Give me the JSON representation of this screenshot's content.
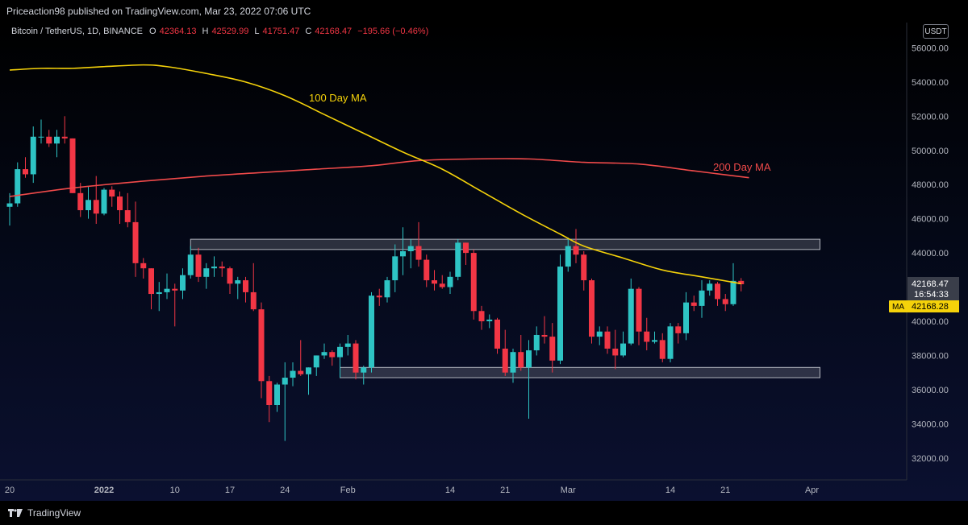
{
  "header": {
    "publish_line": "Priceaction98 published on TradingView.com, Mar 23, 2022 07:06 UTC"
  },
  "legend": {
    "symbol": "Bitcoin / TetherUS, 1D, BINANCE",
    "o_label": "O",
    "o_value": "42364.13",
    "h_label": "H",
    "h_value": "42529.99",
    "l_label": "L",
    "l_value": "41751.47",
    "c_label": "C",
    "c_value": "42168.47",
    "change": "−195.66 (−0.46%)"
  },
  "currency_badge": "USDT",
  "price_tag": {
    "price": "42168.47",
    "countdown": "16:54:33",
    "ma_label": "MA",
    "ma_value": "42168.28"
  },
  "footer": {
    "brand": "TradingView"
  },
  "colors": {
    "up": "#26a69a",
    "up_body": "#2ec4c4",
    "down": "#f23645",
    "ma100": "#f5d20a",
    "ma200": "#f04a4a",
    "zone_fill": "#787b86",
    "zone_stroke": "#b2b5be"
  },
  "chart_data": {
    "type": "candlestick",
    "yaxis": {
      "ticks": [
        32000,
        34000,
        36000,
        38000,
        40000,
        42000,
        44000,
        46000,
        48000,
        50000,
        52000,
        54000,
        56000
      ],
      "tick_labels": [
        "32000.00",
        "34000.00",
        "36000.00",
        "38000.00",
        "40000.00",
        "42000.00",
        "44000.00",
        "46000.00",
        "48000.00",
        "50000.00",
        "52000.00",
        "54000.00",
        "56000.00"
      ]
    },
    "xaxis": {
      "labels": [
        {
          "label": "20",
          "date": "2021-12-20"
        },
        {
          "label": "2022",
          "date": "2022-01-01",
          "bold": true
        },
        {
          "label": "10",
          "date": "2022-01-10"
        },
        {
          "label": "17",
          "date": "2022-01-17"
        },
        {
          "label": "24",
          "date": "2022-01-24"
        },
        {
          "label": "Feb",
          "date": "2022-02-01"
        },
        {
          "label": "14",
          "date": "2022-02-14"
        },
        {
          "label": "21",
          "date": "2022-02-21"
        },
        {
          "label": "Mar",
          "date": "2022-03-01"
        },
        {
          "label": "14",
          "date": "2022-03-14"
        },
        {
          "label": "21",
          "date": "2022-03-21"
        },
        {
          "label": "Apr",
          "date": "2022-04-01"
        }
      ]
    },
    "candles": [
      {
        "date": "2021-12-20",
        "o": 46700,
        "h": 47500,
        "l": 45600,
        "c": 46900
      },
      {
        "date": "2021-12-21",
        "o": 46900,
        "h": 49300,
        "l": 46700,
        "c": 48900
      },
      {
        "date": "2021-12-22",
        "o": 48900,
        "h": 49600,
        "l": 48400,
        "c": 48600
      },
      {
        "date": "2021-12-23",
        "o": 48600,
        "h": 51400,
        "l": 48100,
        "c": 50800
      },
      {
        "date": "2021-12-24",
        "o": 50800,
        "h": 51800,
        "l": 50400,
        "c": 50800
      },
      {
        "date": "2021-12-25",
        "o": 50800,
        "h": 51200,
        "l": 50200,
        "c": 50400
      },
      {
        "date": "2021-12-26",
        "o": 50400,
        "h": 51200,
        "l": 49600,
        "c": 50800
      },
      {
        "date": "2021-12-27",
        "o": 50800,
        "h": 52000,
        "l": 50400,
        "c": 50700
      },
      {
        "date": "2021-12-28",
        "o": 50700,
        "h": 50700,
        "l": 47500,
        "c": 47500
      },
      {
        "date": "2021-12-29",
        "o": 47500,
        "h": 48100,
        "l": 46100,
        "c": 46500
      },
      {
        "date": "2021-12-30",
        "o": 46500,
        "h": 47900,
        "l": 46000,
        "c": 47100
      },
      {
        "date": "2021-12-31",
        "o": 47100,
        "h": 48500,
        "l": 45700,
        "c": 46300
      },
      {
        "date": "2022-01-01",
        "o": 46300,
        "h": 47800,
        "l": 46200,
        "c": 47700
      },
      {
        "date": "2022-01-02",
        "o": 47700,
        "h": 47900,
        "l": 46700,
        "c": 47300
      },
      {
        "date": "2022-01-03",
        "o": 47300,
        "h": 47600,
        "l": 45700,
        "c": 46500
      },
      {
        "date": "2022-01-04",
        "o": 46500,
        "h": 47500,
        "l": 45500,
        "c": 45800
      },
      {
        "date": "2022-01-05",
        "o": 45800,
        "h": 47000,
        "l": 42600,
        "c": 43400
      },
      {
        "date": "2022-01-06",
        "o": 43400,
        "h": 43700,
        "l": 42500,
        "c": 43100
      },
      {
        "date": "2022-01-07",
        "o": 43100,
        "h": 43100,
        "l": 40700,
        "c": 41600
      },
      {
        "date": "2022-01-08",
        "o": 41600,
        "h": 42300,
        "l": 40600,
        "c": 41700
      },
      {
        "date": "2022-01-09",
        "o": 41700,
        "h": 42800,
        "l": 41300,
        "c": 41900
      },
      {
        "date": "2022-01-10",
        "o": 41900,
        "h": 42200,
        "l": 39700,
        "c": 41800
      },
      {
        "date": "2022-01-11",
        "o": 41800,
        "h": 43100,
        "l": 41300,
        "c": 42700
      },
      {
        "date": "2022-01-12",
        "o": 42700,
        "h": 44400,
        "l": 42500,
        "c": 43900
      },
      {
        "date": "2022-01-13",
        "o": 43900,
        "h": 44300,
        "l": 42300,
        "c": 42600
      },
      {
        "date": "2022-01-14",
        "o": 42600,
        "h": 43400,
        "l": 41900,
        "c": 43100
      },
      {
        "date": "2022-01-15",
        "o": 43100,
        "h": 43800,
        "l": 42600,
        "c": 43200
      },
      {
        "date": "2022-01-16",
        "o": 43200,
        "h": 43500,
        "l": 42600,
        "c": 43100
      },
      {
        "date": "2022-01-17",
        "o": 43100,
        "h": 43200,
        "l": 41600,
        "c": 42200
      },
      {
        "date": "2022-01-18",
        "o": 42200,
        "h": 42600,
        "l": 41300,
        "c": 42400
      },
      {
        "date": "2022-01-19",
        "o": 42400,
        "h": 42600,
        "l": 41100,
        "c": 41700
      },
      {
        "date": "2022-01-20",
        "o": 41700,
        "h": 43400,
        "l": 40600,
        "c": 40700
      },
      {
        "date": "2022-01-21",
        "o": 40700,
        "h": 41100,
        "l": 35500,
        "c": 36500
      },
      {
        "date": "2022-01-22",
        "o": 36500,
        "h": 36800,
        "l": 34100,
        "c": 35100
      },
      {
        "date": "2022-01-23",
        "o": 35100,
        "h": 36400,
        "l": 34700,
        "c": 36300
      },
      {
        "date": "2022-01-24",
        "o": 36300,
        "h": 37600,
        "l": 33000,
        "c": 36700
      },
      {
        "date": "2022-01-25",
        "o": 36700,
        "h": 37600,
        "l": 36200,
        "c": 37100
      },
      {
        "date": "2022-01-26",
        "o": 37100,
        "h": 38900,
        "l": 36800,
        "c": 36900
      },
      {
        "date": "2022-01-27",
        "o": 36900,
        "h": 37300,
        "l": 35700,
        "c": 37300
      },
      {
        "date": "2022-01-28",
        "o": 37300,
        "h": 38000,
        "l": 36800,
        "c": 38000
      },
      {
        "date": "2022-01-29",
        "o": 38000,
        "h": 38700,
        "l": 37800,
        "c": 38200
      },
      {
        "date": "2022-01-30",
        "o": 38200,
        "h": 38300,
        "l": 37400,
        "c": 37900
      },
      {
        "date": "2022-01-31",
        "o": 37900,
        "h": 38700,
        "l": 36700,
        "c": 38500
      },
      {
        "date": "2022-02-01",
        "o": 38500,
        "h": 39200,
        "l": 38000,
        "c": 38700
      },
      {
        "date": "2022-02-02",
        "o": 38700,
        "h": 38900,
        "l": 36600,
        "c": 37000
      },
      {
        "date": "2022-02-03",
        "o": 37000,
        "h": 37400,
        "l": 36300,
        "c": 37300
      },
      {
        "date": "2022-02-04",
        "o": 37300,
        "h": 41700,
        "l": 37000,
        "c": 41500
      },
      {
        "date": "2022-02-05",
        "o": 41500,
        "h": 41900,
        "l": 40900,
        "c": 41400
      },
      {
        "date": "2022-02-06",
        "o": 41400,
        "h": 42600,
        "l": 41100,
        "c": 42400
      },
      {
        "date": "2022-02-07",
        "o": 42400,
        "h": 44500,
        "l": 41700,
        "c": 43800
      },
      {
        "date": "2022-02-08",
        "o": 43800,
        "h": 45500,
        "l": 42700,
        "c": 44100
      },
      {
        "date": "2022-02-09",
        "o": 44100,
        "h": 44800,
        "l": 43100,
        "c": 44400
      },
      {
        "date": "2022-02-10",
        "o": 44400,
        "h": 45800,
        "l": 43200,
        "c": 43600
      },
      {
        "date": "2022-02-11",
        "o": 43600,
        "h": 43900,
        "l": 42000,
        "c": 42400
      },
      {
        "date": "2022-02-12",
        "o": 42400,
        "h": 43000,
        "l": 41800,
        "c": 42200
      },
      {
        "date": "2022-02-13",
        "o": 42200,
        "h": 42700,
        "l": 41900,
        "c": 42000
      },
      {
        "date": "2022-02-14",
        "o": 42000,
        "h": 42900,
        "l": 41600,
        "c": 42600
      },
      {
        "date": "2022-02-15",
        "o": 42600,
        "h": 44800,
        "l": 42400,
        "c": 44600
      },
      {
        "date": "2022-02-16",
        "o": 44600,
        "h": 44600,
        "l": 43300,
        "c": 44000
      },
      {
        "date": "2022-02-17",
        "o": 44000,
        "h": 44200,
        "l": 40100,
        "c": 40600
      },
      {
        "date": "2022-02-18",
        "o": 40600,
        "h": 40900,
        "l": 39500,
        "c": 40000
      },
      {
        "date": "2022-02-19",
        "o": 40000,
        "h": 40400,
        "l": 39600,
        "c": 40100
      },
      {
        "date": "2022-02-20",
        "o": 40100,
        "h": 40200,
        "l": 38100,
        "c": 38400
      },
      {
        "date": "2022-02-21",
        "o": 38400,
        "h": 39500,
        "l": 36800,
        "c": 37000
      },
      {
        "date": "2022-02-22",
        "o": 37000,
        "h": 38400,
        "l": 36400,
        "c": 38200
      },
      {
        "date": "2022-02-23",
        "o": 38200,
        "h": 39200,
        "l": 37100,
        "c": 37300
      },
      {
        "date": "2022-02-24",
        "o": 37300,
        "h": 38900,
        "l": 34300,
        "c": 38300
      },
      {
        "date": "2022-02-25",
        "o": 38300,
        "h": 39700,
        "l": 38000,
        "c": 39200
      },
      {
        "date": "2022-02-26",
        "o": 39200,
        "h": 40300,
        "l": 38700,
        "c": 39100
      },
      {
        "date": "2022-02-27",
        "o": 39100,
        "h": 39900,
        "l": 37000,
        "c": 37700
      },
      {
        "date": "2022-02-28",
        "o": 37700,
        "h": 43900,
        "l": 37500,
        "c": 43200
      },
      {
        "date": "2022-03-01",
        "o": 43200,
        "h": 44900,
        "l": 42900,
        "c": 44400
      },
      {
        "date": "2022-03-02",
        "o": 44400,
        "h": 45400,
        "l": 43400,
        "c": 43900
      },
      {
        "date": "2022-03-03",
        "o": 43900,
        "h": 44100,
        "l": 41800,
        "c": 42400
      },
      {
        "date": "2022-03-04",
        "o": 42400,
        "h": 42500,
        "l": 38700,
        "c": 39100
      },
      {
        "date": "2022-03-05",
        "o": 39100,
        "h": 39700,
        "l": 38600,
        "c": 39400
      },
      {
        "date": "2022-03-06",
        "o": 39400,
        "h": 39700,
        "l": 38100,
        "c": 38400
      },
      {
        "date": "2022-03-07",
        "o": 38400,
        "h": 39500,
        "l": 37200,
        "c": 38000
      },
      {
        "date": "2022-03-08",
        "o": 38000,
        "h": 39400,
        "l": 37900,
        "c": 38700
      },
      {
        "date": "2022-03-09",
        "o": 38700,
        "h": 42500,
        "l": 38600,
        "c": 41900
      },
      {
        "date": "2022-03-10",
        "o": 41900,
        "h": 42000,
        "l": 38600,
        "c": 39400
      },
      {
        "date": "2022-03-11",
        "o": 39400,
        "h": 40200,
        "l": 38300,
        "c": 38800
      },
      {
        "date": "2022-03-12",
        "o": 38800,
        "h": 39400,
        "l": 38700,
        "c": 38900
      },
      {
        "date": "2022-03-13",
        "o": 38900,
        "h": 39300,
        "l": 37600,
        "c": 37800
      },
      {
        "date": "2022-03-14",
        "o": 37800,
        "h": 39900,
        "l": 37600,
        "c": 39700
      },
      {
        "date": "2022-03-15",
        "o": 39700,
        "h": 39900,
        "l": 38700,
        "c": 39300
      },
      {
        "date": "2022-03-16",
        "o": 39300,
        "h": 41700,
        "l": 38900,
        "c": 41100
      },
      {
        "date": "2022-03-17",
        "o": 41100,
        "h": 41500,
        "l": 40600,
        "c": 40900
      },
      {
        "date": "2022-03-18",
        "o": 40900,
        "h": 42400,
        "l": 40200,
        "c": 41800
      },
      {
        "date": "2022-03-19",
        "o": 41800,
        "h": 42400,
        "l": 41500,
        "c": 42200
      },
      {
        "date": "2022-03-20",
        "o": 42200,
        "h": 42300,
        "l": 40900,
        "c": 41300
      },
      {
        "date": "2022-03-21",
        "o": 41300,
        "h": 41600,
        "l": 40600,
        "c": 41000
      },
      {
        "date": "2022-03-22",
        "o": 41000,
        "h": 43400,
        "l": 40900,
        "c": 42364
      },
      {
        "date": "2022-03-23",
        "o": 42364,
        "h": 42530,
        "l": 41751,
        "c": 42168
      }
    ],
    "ma100": {
      "name": "100 Day MA",
      "points": [
        {
          "date": "2021-12-20",
          "v": 54700
        },
        {
          "date": "2021-12-24",
          "v": 54800
        },
        {
          "date": "2021-12-28",
          "v": 54800
        },
        {
          "date": "2022-01-01",
          "v": 54900
        },
        {
          "date": "2022-01-06",
          "v": 55000
        },
        {
          "date": "2022-01-09",
          "v": 54900
        },
        {
          "date": "2022-01-14",
          "v": 54500
        },
        {
          "date": "2022-01-19",
          "v": 54000
        },
        {
          "date": "2022-01-24",
          "v": 53200
        },
        {
          "date": "2022-01-29",
          "v": 52100
        },
        {
          "date": "2022-02-03",
          "v": 51000
        },
        {
          "date": "2022-02-08",
          "v": 49900
        },
        {
          "date": "2022-02-13",
          "v": 48900
        },
        {
          "date": "2022-02-18",
          "v": 47600
        },
        {
          "date": "2022-02-23",
          "v": 46300
        },
        {
          "date": "2022-02-28",
          "v": 45100
        },
        {
          "date": "2022-03-03",
          "v": 44400
        },
        {
          "date": "2022-03-08",
          "v": 43700
        },
        {
          "date": "2022-03-13",
          "v": 43000
        },
        {
          "date": "2022-03-18",
          "v": 42600
        },
        {
          "date": "2022-03-23",
          "v": 42200
        }
      ]
    },
    "ma200": {
      "name": "200 Day MA",
      "points": [
        {
          "date": "2021-12-20",
          "v": 47300
        },
        {
          "date": "2021-12-28",
          "v": 47800
        },
        {
          "date": "2022-01-06",
          "v": 48200
        },
        {
          "date": "2022-01-14",
          "v": 48500
        },
        {
          "date": "2022-01-21",
          "v": 48700
        },
        {
          "date": "2022-01-28",
          "v": 48900
        },
        {
          "date": "2022-02-04",
          "v": 49100
        },
        {
          "date": "2022-02-10",
          "v": 49400
        },
        {
          "date": "2022-02-17",
          "v": 49500
        },
        {
          "date": "2022-02-24",
          "v": 49500
        },
        {
          "date": "2022-03-03",
          "v": 49300
        },
        {
          "date": "2022-03-10",
          "v": 49200
        },
        {
          "date": "2022-03-17",
          "v": 48800
        },
        {
          "date": "2022-03-24",
          "v": 48400
        }
      ]
    },
    "zones": [
      {
        "name": "resistance",
        "from": "2022-01-12",
        "to": "2022-04-01",
        "low": 44200,
        "high": 44800
      },
      {
        "name": "support",
        "from": "2022-01-31",
        "to": "2022-04-01",
        "low": 36700,
        "high": 37300
      }
    ]
  }
}
